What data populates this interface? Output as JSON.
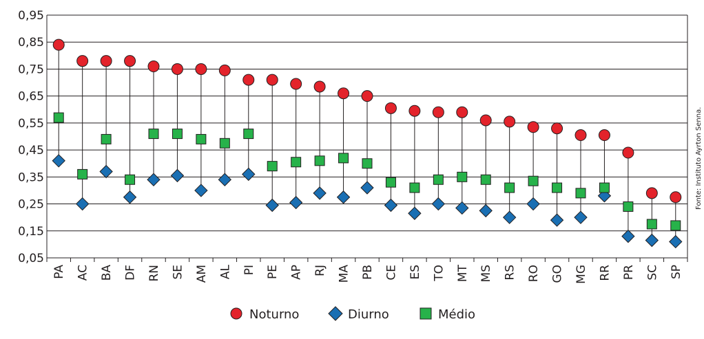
{
  "source_note": "Fonte: Instituto Ayrton Senna.",
  "colors": {
    "noturno": "#e3232b",
    "diurno": "#1a6fb3",
    "medio": "#27b24a",
    "stroke": "#231f20",
    "grid": "#231f20"
  },
  "chart_data": {
    "type": "scatter",
    "title": "",
    "xlabel": "",
    "ylabel": "",
    "ylim": [
      0.05,
      0.95
    ],
    "yticks": [
      0.05,
      0.15,
      0.25,
      0.35,
      0.45,
      0.55,
      0.65,
      0.75,
      0.85,
      0.95
    ],
    "ytick_labels": [
      "0,05",
      "0,15",
      "0,25",
      "0,35",
      "0,45",
      "0,55",
      "0,65",
      "0,75",
      "0,85",
      "0,95"
    ],
    "grid": true,
    "legend_position": "bottom-center",
    "categories": [
      "PA",
      "AC",
      "BA",
      "DF",
      "RN",
      "SE",
      "AM",
      "AL",
      "PI",
      "PE",
      "AP",
      "RJ",
      "MA",
      "PB",
      "CE",
      "ES",
      "TO",
      "MT",
      "MS",
      "RS",
      "RO",
      "GO",
      "MG",
      "RR",
      "PR",
      "SC",
      "SP"
    ],
    "series": [
      {
        "name": "Noturno",
        "marker": "circle",
        "values": [
          0.84,
          0.78,
          0.78,
          0.78,
          0.76,
          0.75,
          0.75,
          0.745,
          0.71,
          0.71,
          0.695,
          0.685,
          0.66,
          0.65,
          0.605,
          0.595,
          0.59,
          0.59,
          0.56,
          0.555,
          0.535,
          0.53,
          0.505,
          0.505,
          0.44,
          0.29,
          0.275
        ]
      },
      {
        "name": "Diurno",
        "marker": "diamond",
        "values": [
          0.41,
          0.25,
          0.37,
          0.275,
          0.34,
          0.355,
          0.3,
          0.34,
          0.36,
          0.245,
          0.255,
          0.29,
          0.275,
          0.31,
          0.245,
          0.215,
          0.25,
          0.235,
          0.225,
          0.2,
          0.25,
          0.19,
          0.2,
          0.28,
          0.13,
          0.115,
          0.11
        ]
      },
      {
        "name": "Médio",
        "marker": "square",
        "values": [
          0.57,
          0.36,
          0.49,
          0.34,
          0.51,
          0.51,
          0.49,
          0.475,
          0.51,
          0.39,
          0.405,
          0.41,
          0.42,
          0.4,
          0.33,
          0.31,
          0.34,
          0.35,
          0.34,
          0.31,
          0.335,
          0.31,
          0.29,
          0.31,
          0.24,
          0.175,
          0.17
        ]
      }
    ]
  }
}
